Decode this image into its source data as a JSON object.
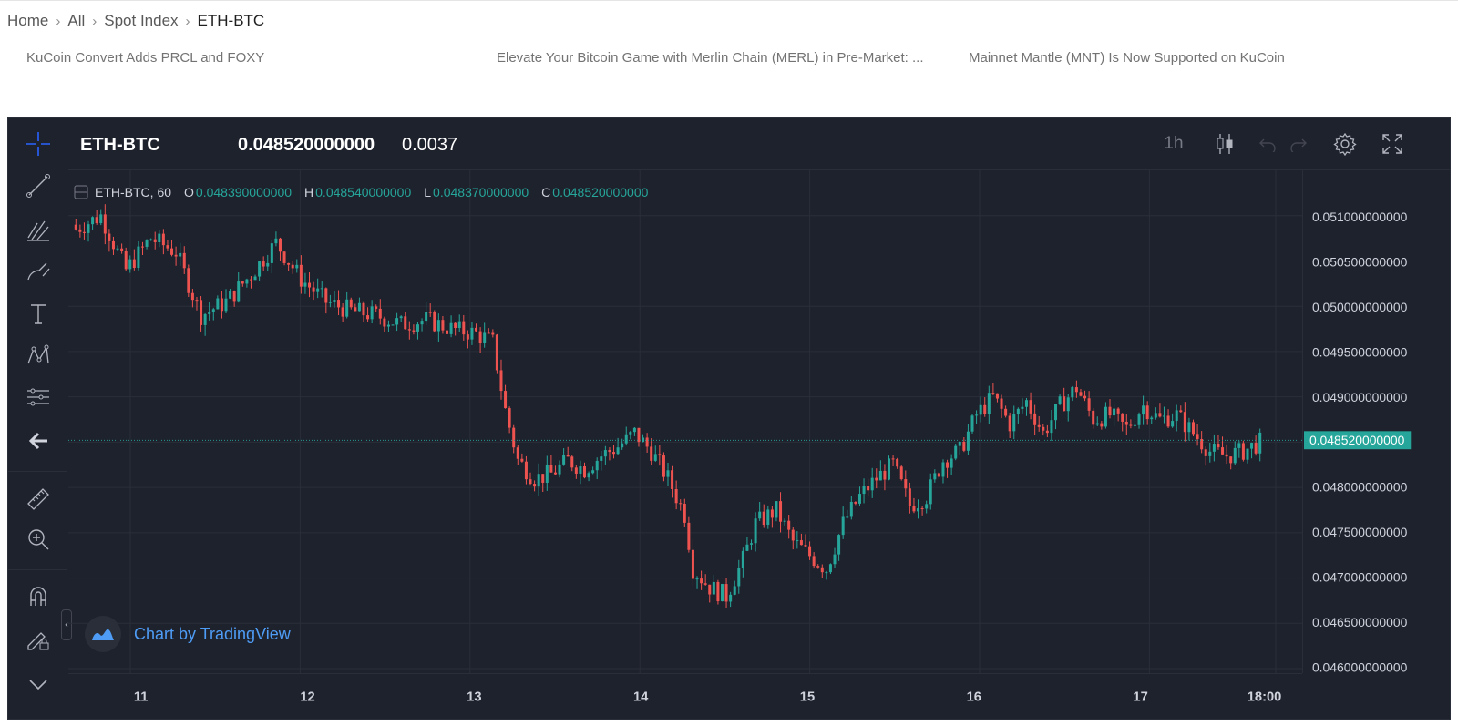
{
  "breadcrumb": {
    "items": [
      "Home",
      "All",
      "Spot Index"
    ],
    "current": "ETH-BTC"
  },
  "news": [
    "KuCoin Convert Adds PRCL and FOXY",
    "Elevate Your Bitcoin Game with Merlin Chain (MERL) in Pre-Market: ...",
    "Mainnet Mantle (MNT) Is Now Supported on KuCoin"
  ],
  "chart_header": {
    "symbol": "ETH-BTC",
    "last_price": "0.048520000000",
    "change": "0.0037",
    "timeframe": "1h"
  },
  "legend": {
    "title": "ETH-BTC, 60",
    "o_label": "O",
    "o_value": "0.048390000000",
    "h_label": "H",
    "h_value": "0.048540000000",
    "l_label": "L",
    "l_value": "0.048370000000",
    "c_label": "C",
    "c_value": "0.048520000000"
  },
  "branding": {
    "text": "Chart by TradingView"
  },
  "colors": {
    "up": "#26a69a",
    "down": "#ef5350",
    "background": "#1e222d",
    "last_price_tag": "#26a69a"
  },
  "icons": [
    "crosshair-icon",
    "trend-line-icon",
    "fib-icon",
    "brush-icon",
    "text-icon",
    "pattern-icon",
    "measure-lines-icon",
    "back-arrow-icon",
    "ruler-icon",
    "zoom-in-icon",
    "magnet-icon",
    "lock-draw-icon",
    "chevron-down-icon",
    "candles-icon",
    "undo-icon",
    "redo-icon",
    "gear-icon",
    "fullscreen-icon"
  ],
  "chart_data": {
    "type": "candlestick",
    "symbol": "ETH-BTC",
    "interval": "60",
    "y_ticks": [
      "0.051000000000",
      "0.050500000000",
      "0.050000000000",
      "0.049500000000",
      "0.049000000000",
      "0.048500000000",
      "0.048000000000",
      "0.047500000000",
      "0.047000000000",
      "0.046500000000",
      "0.046000000000"
    ],
    "ylim": [
      0.04595,
      0.0515
    ],
    "x_ticks": [
      "11",
      "12",
      "13",
      "14",
      "15",
      "16",
      "17",
      "18:00"
    ],
    "last_price": 0.04852,
    "last_price_label": "0.048520000000",
    "close_path": [
      [
        0,
        0.05085
      ],
      [
        6,
        0.051
      ],
      [
        12,
        0.0504
      ],
      [
        18,
        0.05075
      ],
      [
        24,
        0.0506
      ],
      [
        30,
        0.0499
      ],
      [
        36,
        0.05005
      ],
      [
        42,
        0.05035
      ],
      [
        48,
        0.0507
      ],
      [
        54,
        0.0503
      ],
      [
        60,
        0.05005
      ],
      [
        66,
        0.04995
      ],
      [
        72,
        0.0499
      ],
      [
        78,
        0.0498
      ],
      [
        84,
        0.04985
      ],
      [
        90,
        0.04975
      ],
      [
        96,
        0.0497
      ],
      [
        100,
        0.0496
      ],
      [
        103,
        0.04885
      ],
      [
        106,
        0.0483
      ],
      [
        110,
        0.0481
      ],
      [
        114,
        0.04815
      ],
      [
        118,
        0.0483
      ],
      [
        122,
        0.0482
      ],
      [
        126,
        0.04835
      ],
      [
        130,
        0.04845
      ],
      [
        134,
        0.0486
      ],
      [
        138,
        0.0484
      ],
      [
        142,
        0.0481
      ],
      [
        146,
        0.0477
      ],
      [
        148,
        0.0471
      ],
      [
        152,
        0.0469
      ],
      [
        156,
        0.0468
      ],
      [
        160,
        0.0472
      ],
      [
        163,
        0.0476
      ],
      [
        168,
        0.04775
      ],
      [
        172,
        0.0474
      ],
      [
        176,
        0.04725
      ],
      [
        180,
        0.0471
      ],
      [
        184,
        0.0476
      ],
      [
        188,
        0.0479
      ],
      [
        192,
        0.0481
      ],
      [
        196,
        0.04825
      ],
      [
        200,
        0.0478
      ],
      [
        204,
        0.0479
      ],
      [
        208,
        0.0483
      ],
      [
        212,
        0.0484
      ],
      [
        216,
        0.0488
      ],
      [
        220,
        0.049
      ],
      [
        224,
        0.0487
      ],
      [
        228,
        0.04895
      ],
      [
        232,
        0.0486
      ],
      [
        236,
        0.0489
      ],
      [
        240,
        0.0491
      ],
      [
        244,
        0.04875
      ],
      [
        248,
        0.0488
      ],
      [
        252,
        0.04865
      ],
      [
        256,
        0.0489
      ],
      [
        260,
        0.04875
      ],
      [
        264,
        0.0488
      ],
      [
        268,
        0.0486
      ],
      [
        272,
        0.0484
      ],
      [
        276,
        0.04835
      ],
      [
        280,
        0.0484
      ],
      [
        284,
        0.0485
      ]
    ]
  }
}
